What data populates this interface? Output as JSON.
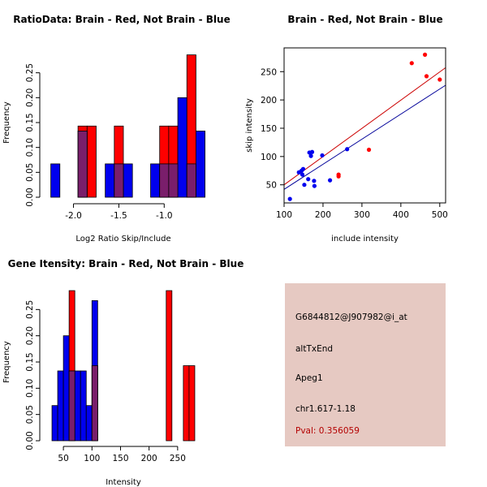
{
  "colors": {
    "red": "#ff0000",
    "blue": "#0000ee",
    "overlap": "#7a1e6b",
    "red_line": "#cc0000",
    "blue_line": "#000099",
    "panel_bg": "#e6c9c2",
    "pval_text": "#b40000"
  },
  "chart_data": [
    {
      "type": "bar",
      "title": "RatioData: Brain - Red, Not Brain - Blue",
      "xlabel": "Log2 Ratio Skip/Include",
      "ylabel": "Frequency",
      "xlim": [
        -2.3,
        -0.6
      ],
      "ylim": [
        0,
        0.3
      ],
      "bin_width": 0.1,
      "xticks": [
        {
          "value": -2.0,
          "label": "-2.0"
        },
        {
          "value": -1.5,
          "label": "-1.5"
        },
        {
          "value": -1.0,
          "label": "-1.0"
        }
      ],
      "yticks": [
        {
          "value": 0.0,
          "label": "0.00"
        },
        {
          "value": 0.05,
          "label": "0.05"
        },
        {
          "value": 0.1,
          "label": "0.10"
        },
        {
          "value": 0.15,
          "label": "0.15"
        },
        {
          "value": 0.2,
          "label": "0.20"
        },
        {
          "value": 0.25,
          "label": "0.25"
        }
      ],
      "series": [
        {
          "name": "Brain (red)",
          "color": "red",
          "bins": [
            {
              "start": -1.95,
              "value": 0.143
            },
            {
              "start": -1.85,
              "value": 0.143
            },
            {
              "start": -1.55,
              "value": 0.143
            },
            {
              "start": -1.05,
              "value": 0.143
            },
            {
              "start": -0.95,
              "value": 0.143
            },
            {
              "start": -0.75,
              "value": 0.286
            }
          ]
        },
        {
          "name": "Not Brain (blue)",
          "color": "blue",
          "bins": [
            {
              "start": -2.25,
              "value": 0.067
            },
            {
              "start": -1.95,
              "value": 0.133
            },
            {
              "start": -1.65,
              "value": 0.067
            },
            {
              "start": -1.55,
              "value": 0.067
            },
            {
              "start": -1.45,
              "value": 0.067
            },
            {
              "start": -1.15,
              "value": 0.067
            },
            {
              "start": -1.05,
              "value": 0.067
            },
            {
              "start": -0.95,
              "value": 0.067
            },
            {
              "start": -0.85,
              "value": 0.2
            },
            {
              "start": -0.75,
              "value": 0.067
            },
            {
              "start": -0.65,
              "value": 0.133
            }
          ]
        }
      ]
    },
    {
      "type": "scatter",
      "title": "Brain - Red, Not Brain - Blue",
      "xlabel": "include intensity",
      "ylabel": "skip intensity",
      "xlim": [
        100,
        515
      ],
      "ylim": [
        18,
        292
      ],
      "xticks": [
        {
          "value": 100,
          "label": "100"
        },
        {
          "value": 200,
          "label": "200"
        },
        {
          "value": 300,
          "label": "300"
        },
        {
          "value": 400,
          "label": "400"
        },
        {
          "value": 500,
          "label": "500"
        }
      ],
      "yticks": [
        {
          "value": 50,
          "label": "50"
        },
        {
          "value": 100,
          "label": "100"
        },
        {
          "value": 150,
          "label": "150"
        },
        {
          "value": 200,
          "label": "200"
        },
        {
          "value": 250,
          "label": "250"
        }
      ],
      "series": [
        {
          "name": "Brain (red)",
          "color": "red",
          "points": [
            [
              240,
              68
            ],
            [
              240,
              65
            ],
            [
              318,
              112
            ],
            [
              428,
              265
            ],
            [
              462,
              280
            ],
            [
              466,
              242
            ],
            [
              500,
              236
            ]
          ],
          "fit_line": {
            "x": [
              100,
              515
            ],
            "y": [
              50,
              257
            ]
          }
        },
        {
          "name": "Not Brain (blue)",
          "color": "blue",
          "points": [
            [
              115,
              25
            ],
            [
              138,
              72
            ],
            [
              145,
              75
            ],
            [
              149,
              78
            ],
            [
              147,
              68
            ],
            [
              152,
              50
            ],
            [
              162,
              60
            ],
            [
              165,
              107
            ],
            [
              169,
              101
            ],
            [
              172,
              108
            ],
            [
              177,
              57
            ],
            [
              178,
              48
            ],
            [
              198,
              102
            ],
            [
              218,
              58
            ],
            [
              262,
              113
            ]
          ],
          "fit_line": {
            "x": [
              100,
              515
            ],
            "y": [
              42,
              226
            ]
          }
        }
      ]
    },
    {
      "type": "bar",
      "title": "Gene Itensity: Brain - Red, Not Brain - Blue",
      "xlabel": "Intensity",
      "ylabel": "Frequency",
      "xlim": [
        20,
        290
      ],
      "ylim": [
        0,
        0.3
      ],
      "bin_width": 10,
      "xticks": [
        {
          "value": 50,
          "label": "50"
        },
        {
          "value": 100,
          "label": "100"
        },
        {
          "value": 150,
          "label": "150"
        },
        {
          "value": 200,
          "label": "200"
        },
        {
          "value": 250,
          "label": "250"
        }
      ],
      "yticks": [
        {
          "value": 0.0,
          "label": "0.00"
        },
        {
          "value": 0.05,
          "label": "0.05"
        },
        {
          "value": 0.1,
          "label": "0.10"
        },
        {
          "value": 0.15,
          "label": "0.15"
        },
        {
          "value": 0.2,
          "label": "0.20"
        },
        {
          "value": 0.25,
          "label": "0.25"
        }
      ],
      "series": [
        {
          "name": "Brain (red)",
          "color": "red",
          "bins": [
            {
              "start": 60,
              "value": 0.286
            },
            {
              "start": 100,
              "value": 0.143
            },
            {
              "start": 230,
              "value": 0.286
            },
            {
              "start": 260,
              "value": 0.143
            },
            {
              "start": 270,
              "value": 0.143
            }
          ]
        },
        {
          "name": "Not Brain (blue)",
          "color": "blue",
          "bins": [
            {
              "start": 30,
              "value": 0.067
            },
            {
              "start": 40,
              "value": 0.133
            },
            {
              "start": 50,
              "value": 0.2
            },
            {
              "start": 60,
              "value": 0.133
            },
            {
              "start": 70,
              "value": 0.133
            },
            {
              "start": 80,
              "value": 0.133
            },
            {
              "start": 90,
              "value": 0.067
            },
            {
              "start": 100,
              "value": 0.267
            }
          ]
        }
      ]
    }
  ],
  "info_panel": {
    "probe_id": "G6844812@J907982@i_at",
    "event_type": "altTxEnd",
    "gene": "Apeg1",
    "location": "chr1.617-1.18",
    "pval": "Pval: 0.356059"
  }
}
